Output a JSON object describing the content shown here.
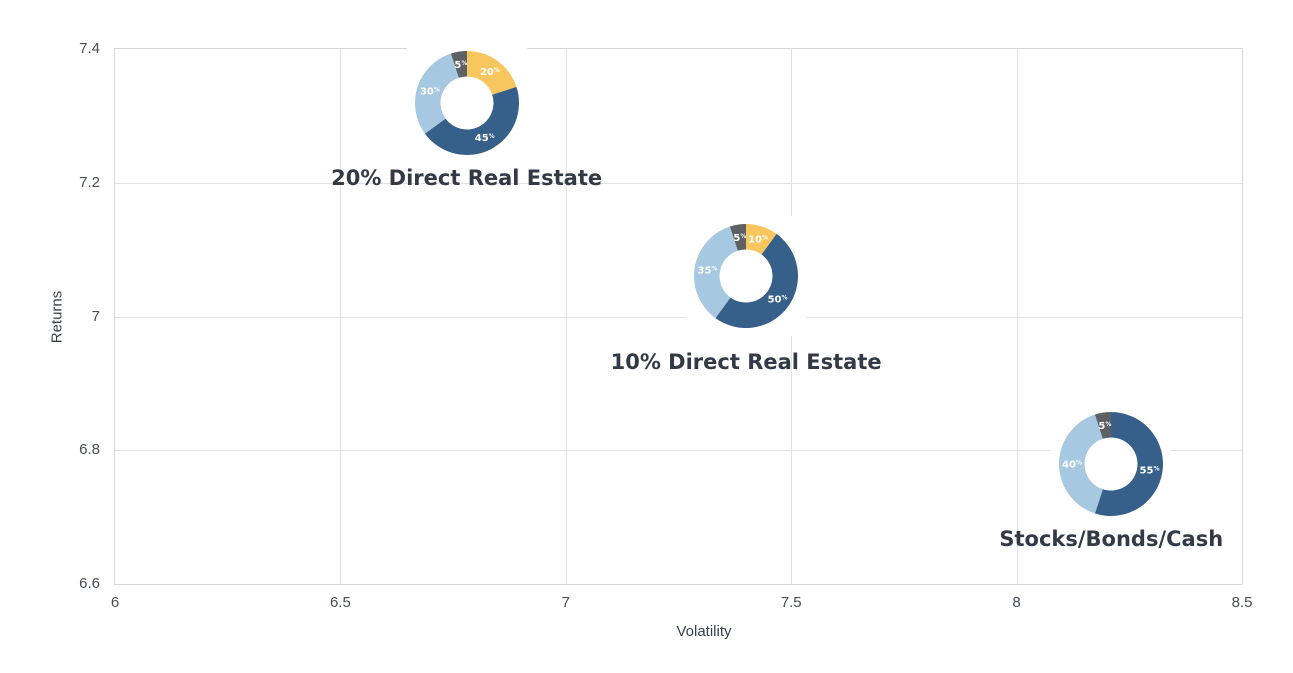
{
  "chart_data": {
    "type": "scatter",
    "marker_style": "donut",
    "title": "",
    "xlabel": "Volatility",
    "ylabel": "Returns",
    "xlim": [
      6,
      8.5
    ],
    "ylim": [
      6.6,
      7.4
    ],
    "grid": true,
    "legend": "none",
    "xticks": {
      "values": [
        6,
        6.5,
        7,
        7.5,
        8,
        8.5
      ],
      "labels": [
        "6",
        "6.5",
        "7",
        "7.5",
        "8",
        "8.5"
      ]
    },
    "yticks": {
      "values": [
        6.6,
        6.8,
        7,
        7.2,
        7.4
      ],
      "labels": [
        "6.6",
        "6.8",
        "7",
        "7.2",
        "7.4"
      ]
    },
    "points": [
      {
        "label": "20% Direct Real Estate",
        "x": 6.78,
        "y": 7.32,
        "slices": [
          {
            "value": 20,
            "color": "#f7c65e"
          },
          {
            "value": 45,
            "color": "#365f8a"
          },
          {
            "value": 30,
            "color": "#a6c8e1"
          },
          {
            "value": 5,
            "color": "#5e6063"
          }
        ]
      },
      {
        "label": "10% Direct Real Estate",
        "x": 7.4,
        "y": 7.06,
        "slices": [
          {
            "value": 10,
            "color": "#f7c65e"
          },
          {
            "value": 50,
            "color": "#365f8a"
          },
          {
            "value": 35,
            "color": "#a6c8e1"
          },
          {
            "value": 5,
            "color": "#5e6063"
          }
        ]
      },
      {
        "label": "Stocks/Bonds/Cash",
        "x": 8.21,
        "y": 6.78,
        "slices": [
          {
            "value": 55,
            "color": "#365f8a"
          },
          {
            "value": 40,
            "color": "#a6c8e1"
          },
          {
            "value": 5,
            "color": "#5e6063"
          }
        ]
      }
    ],
    "colors": {
      "background": "#ffffff",
      "plot_border": "#d6d6d6",
      "gridline": "#e2e2e2",
      "tick_text": "#474c55",
      "axis_title_text": "#3a3f49",
      "point_label_text": "#333a45",
      "slice_label_text": "#ffffff"
    }
  }
}
